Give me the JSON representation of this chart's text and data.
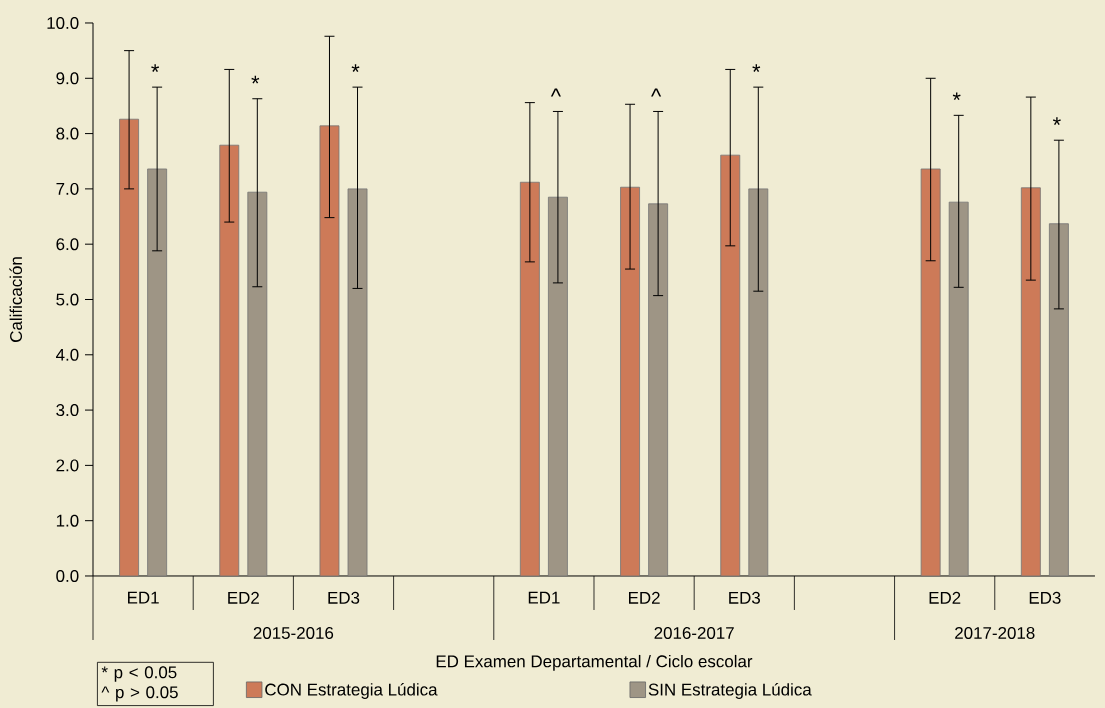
{
  "chart_data": {
    "type": "bar",
    "xlabel": "ED Examen Departamental / Ciclo escolar",
    "ylabel": "Calificación",
    "categories": [
      "ED1",
      "ED2",
      "ED3",
      null,
      "ED1",
      "ED2",
      "ED3",
      null,
      "ED2",
      "ED3"
    ],
    "series": [
      {
        "name": "CON Estrategia Lúdica",
        "color": "#cd7a58",
        "values": [
          8.26,
          7.79,
          8.14,
          null,
          7.12,
          7.03,
          7.61,
          null,
          7.36,
          7.02
        ],
        "errors": [
          [
            7.0,
            9.5
          ],
          [
            6.4,
            9.16
          ],
          [
            6.48,
            9.76
          ],
          null,
          [
            5.68,
            8.56
          ],
          [
            5.55,
            8.53
          ],
          [
            5.97,
            9.16
          ],
          null,
          [
            5.7,
            9.0
          ],
          [
            5.35,
            8.66
          ]
        ]
      },
      {
        "name": "SIN Estrategia Lúdica",
        "color": "#9e9585",
        "values": [
          7.36,
          6.94,
          7.0,
          null,
          6.85,
          6.73,
          7.0,
          null,
          6.76,
          6.37
        ],
        "errors": [
          [
            5.88,
            8.84
          ],
          [
            5.23,
            8.63
          ],
          [
            5.2,
            8.84
          ],
          null,
          [
            5.3,
            8.4
          ],
          [
            5.07,
            8.4
          ],
          [
            5.15,
            8.84
          ],
          null,
          [
            5.22,
            8.33
          ],
          [
            4.83,
            7.88
          ]
        ]
      }
    ],
    "ylim": [
      0,
      10
    ],
    "yticks": [
      {
        "value": 0,
        "label": "0.0"
      },
      {
        "value": 1,
        "label": "1.0"
      },
      {
        "value": 2,
        "label": "2.0"
      },
      {
        "value": 3,
        "label": "3.0"
      },
      {
        "value": 4,
        "label": "4.0"
      },
      {
        "value": 5,
        "label": "5.0"
      },
      {
        "value": 6,
        "label": "6.0"
      },
      {
        "value": 7,
        "label": "7.0"
      },
      {
        "value": 8,
        "label": "8.0"
      },
      {
        "value": 9,
        "label": "9.0"
      },
      {
        "value": 10,
        "label": "10.0"
      }
    ],
    "legend": "bottom",
    "annotations": [
      "2015-2016",
      "2016-2017",
      "2017-2018",
      "* p < 0.05",
      "^ p > 0.05",
      "*",
      "*",
      "*",
      "^",
      "^",
      "*",
      "*",
      "*"
    ]
  }
}
